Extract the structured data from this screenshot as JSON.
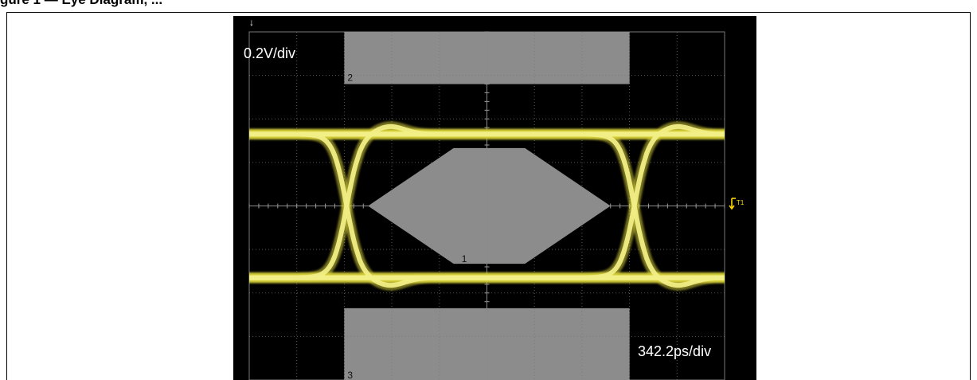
{
  "caption": "gure 1 — Eye Diagram, ...",
  "scope": {
    "vertical_scale": "0.2V/div",
    "horizontal_scale": "342.2ps/div",
    "trigger_marker": "T1"
  },
  "chart_data": {
    "type": "eye-diagram",
    "title": "",
    "xlabel": "",
    "ylabel": "",
    "volts_per_div": 0.2,
    "ps_per_div": 342.2,
    "x_divisions": 10,
    "y_divisions": 8,
    "x_range_div": [
      -5,
      5
    ],
    "y_range_div": [
      -4,
      4
    ],
    "grid": true,
    "trace_color": "#e6e24a",
    "mask_color": "#8c8c8c",
    "levels_div": {
      "high": 1.65,
      "low": -1.65,
      "overshoot_peak": 1.95,
      "undershoot_peak": -1.95
    },
    "crossings_div": [
      -2.95,
      3.1
    ],
    "masks": [
      {
        "label": "1",
        "shape": "hexagon",
        "points_div": [
          [
            -2.5,
            0
          ],
          [
            -0.7,
            1.33
          ],
          [
            0.8,
            1.33
          ],
          [
            2.6,
            0
          ],
          [
            0.8,
            -1.33
          ],
          [
            -0.7,
            -1.33
          ]
        ]
      },
      {
        "label": "2",
        "shape": "rect",
        "x_div": [
          -3,
          3
        ],
        "y_div": [
          2.8,
          4
        ]
      },
      {
        "label": "3",
        "shape": "rect",
        "x_div": [
          -3,
          3
        ],
        "y_div": [
          -4,
          -2.35
        ]
      }
    ]
  }
}
